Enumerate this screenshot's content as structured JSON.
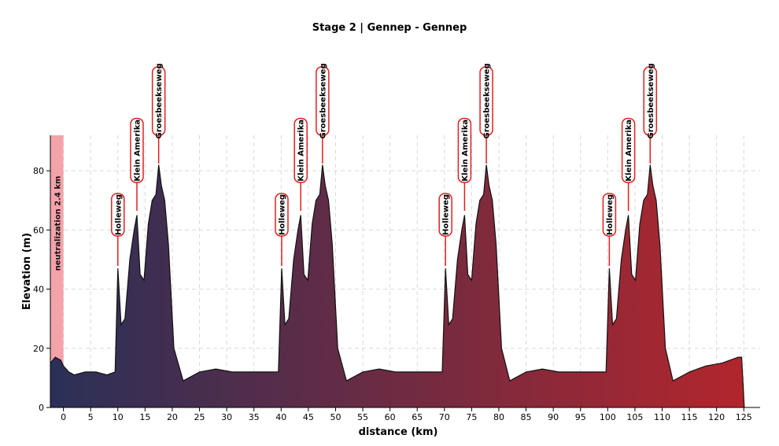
{
  "chart_data": {
    "type": "area",
    "title": "Stage 2 | Gennep - Gennep",
    "xlabel": "distance (km)",
    "ylabel": "Elevation (m)",
    "xlim": [
      -2.4,
      128
    ],
    "ylim": [
      0,
      92
    ],
    "xticks": [
      0,
      5,
      10,
      15,
      20,
      25,
      30,
      35,
      40,
      45,
      50,
      55,
      60,
      65,
      70,
      75,
      80,
      85,
      90,
      95,
      100,
      105,
      110,
      115,
      120,
      125
    ],
    "yticks": [
      0,
      20,
      40,
      60,
      80
    ],
    "grid": true,
    "gradient": {
      "start": "#2a3058",
      "end": "#b3262c"
    },
    "neutralization": {
      "label": "neutralization 2.4 km",
      "x": [
        -2.4,
        0
      ],
      "color": "#f4a3ab"
    },
    "climbs": [
      {
        "name": "Holleweg",
        "km": 10.0,
        "elevation": 47
      },
      {
        "name": "Klein Amerika",
        "km": 13.5,
        "elevation": 65
      },
      {
        "name": "Groesbeekseweg",
        "km": 17.5,
        "elevation": 82
      },
      {
        "name": "Holleweg",
        "km": 40.1,
        "elevation": 47
      },
      {
        "name": "Klein Amerika",
        "km": 43.6,
        "elevation": 65
      },
      {
        "name": "Groesbeekseweg",
        "km": 47.6,
        "elevation": 82
      },
      {
        "name": "Holleweg",
        "km": 70.2,
        "elevation": 47
      },
      {
        "name": "Klein Amerika",
        "km": 73.7,
        "elevation": 65
      },
      {
        "name": "Groesbeekseweg",
        "km": 77.7,
        "elevation": 82
      },
      {
        "name": "Holleweg",
        "km": 100.3,
        "elevation": 47
      },
      {
        "name": "Klein Amerika",
        "km": 103.8,
        "elevation": 65
      },
      {
        "name": "Groesbeekseweg",
        "km": 107.8,
        "elevation": 82
      }
    ],
    "profile_x": [
      -2.4,
      -1.5,
      -0.5,
      0,
      1,
      2,
      4,
      6,
      8,
      9.5,
      10.0,
      10.6,
      11.3,
      12.2,
      13.0,
      13.5,
      14.1,
      14.8,
      15.6,
      16.3,
      17.0,
      17.5,
      18.0,
      18.6,
      19.3,
      20.3,
      22,
      25,
      28,
      31,
      34,
      37,
      39.5,
      40.1,
      40.7,
      41.4,
      42.3,
      43.1,
      43.6,
      44.2,
      44.9,
      45.7,
      46.4,
      47.1,
      47.6,
      48.1,
      48.7,
      49.4,
      50.4,
      52,
      55,
      58,
      61,
      64,
      67,
      69.6,
      70.2,
      70.8,
      71.5,
      72.4,
      73.2,
      73.7,
      74.3,
      75.0,
      75.8,
      76.5,
      77.2,
      77.7,
      78.2,
      78.8,
      79.5,
      80.5,
      82,
      85,
      88,
      91,
      94,
      97,
      99.7,
      100.3,
      100.9,
      101.6,
      102.5,
      103.3,
      103.8,
      104.4,
      105.1,
      105.9,
      106.6,
      107.3,
      107.8,
      108.3,
      108.9,
      109.6,
      110.6,
      112,
      115,
      118,
      121,
      124,
      124.6,
      125.1
    ],
    "profile_elevation": [
      15,
      17,
      16,
      14,
      12,
      11,
      12,
      12,
      11,
      12,
      47,
      28,
      30,
      50,
      60,
      65,
      45,
      43,
      62,
      70,
      72,
      82,
      75,
      70,
      55,
      20,
      9,
      12,
      13,
      12,
      12,
      12,
      12,
      47,
      28,
      30,
      50,
      60,
      65,
      45,
      43,
      62,
      70,
      72,
      82,
      75,
      70,
      55,
      20,
      9,
      12,
      13,
      12,
      12,
      12,
      12,
      47,
      28,
      30,
      50,
      60,
      65,
      45,
      43,
      62,
      70,
      72,
      82,
      75,
      70,
      55,
      20,
      9,
      12,
      13,
      12,
      12,
      12,
      12,
      47,
      28,
      30,
      50,
      60,
      65,
      45,
      43,
      62,
      70,
      72,
      82,
      75,
      70,
      55,
      20,
      9,
      12,
      14,
      15,
      17,
      17,
      0
    ]
  }
}
